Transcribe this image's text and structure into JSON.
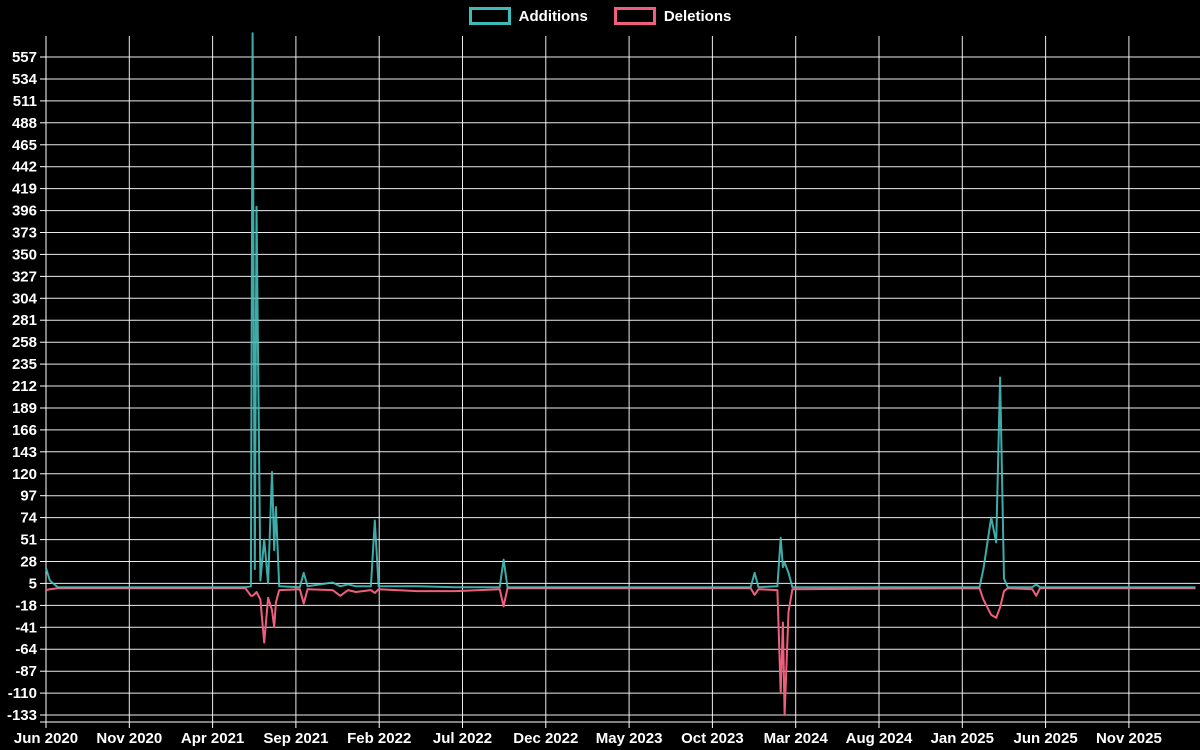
{
  "page": {
    "background": "#000000"
  },
  "legend": {
    "items": [
      {
        "label": "Additions",
        "color": "#3cbcb8"
      },
      {
        "label": "Deletions",
        "color": "#ef5f7d"
      }
    ]
  },
  "chart_data": {
    "type": "line",
    "title": "",
    "legend": [
      "Additions",
      "Deletions"
    ],
    "legend_position": "top-center",
    "grid": true,
    "colors": {
      "additions": "#45c4c0",
      "deletions": "#ef5f7d",
      "grid": "#ffffff",
      "text": "#ffffff",
      "background": "#000000"
    },
    "y_axis": {
      "min": -133,
      "max": 557,
      "tick_step": 23,
      "ticks": [
        557,
        534,
        511,
        488,
        465,
        442,
        419,
        396,
        373,
        350,
        327,
        304,
        281,
        258,
        235,
        212,
        189,
        166,
        143,
        120,
        97,
        74,
        51,
        28,
        5,
        -18,
        -41,
        -64,
        -87,
        -110,
        -133
      ]
    },
    "x_axis": {
      "start": "2020-06",
      "end": "2026-03",
      "months_per_label": 5,
      "labels": [
        "Jun 2020",
        "Nov 2020",
        "Apr 2021",
        "Sep 2021",
        "Feb 2022",
        "Jul 2022",
        "Dec 2022",
        "May 2023",
        "Oct 2023",
        "Mar 2024",
        "Aug 2024",
        "Jan 2025",
        "Jun 2025",
        "Nov 2025"
      ]
    },
    "series": [
      {
        "name": "Additions",
        "key": "additions",
        "color": "#45c4c0"
      },
      {
        "name": "Deletions",
        "key": "deletions",
        "color": "#ef5f7d"
      }
    ],
    "points": [
      {
        "date": "2020-06-01",
        "additions": 21,
        "deletions": -2
      },
      {
        "date": "2020-06-08",
        "additions": 8,
        "deletions": -1
      },
      {
        "date": "2020-06-22",
        "additions": 1,
        "deletions": 0
      },
      {
        "date": "2021-05-30",
        "additions": 1,
        "deletions": 0
      },
      {
        "date": "2021-06-10",
        "additions": 2,
        "deletions": -8
      },
      {
        "date": "2021-06-13",
        "additions": 582,
        "deletions": -8
      },
      {
        "date": "2021-06-17",
        "additions": 20,
        "deletions": -6
      },
      {
        "date": "2021-06-20",
        "additions": 400,
        "deletions": -4
      },
      {
        "date": "2021-06-27",
        "additions": 8,
        "deletions": -12
      },
      {
        "date": "2021-07-04",
        "additions": 51,
        "deletions": -57
      },
      {
        "date": "2021-07-11",
        "additions": 5,
        "deletions": -10
      },
      {
        "date": "2021-07-18",
        "additions": 122,
        "deletions": -23
      },
      {
        "date": "2021-07-22",
        "additions": 40,
        "deletions": -41
      },
      {
        "date": "2021-07-25",
        "additions": 85,
        "deletions": -15
      },
      {
        "date": "2021-08-01",
        "additions": 2,
        "deletions": -2
      },
      {
        "date": "2021-09-08",
        "additions": 1,
        "deletions": -1
      },
      {
        "date": "2021-09-15",
        "additions": 16,
        "deletions": -16
      },
      {
        "date": "2021-09-22",
        "additions": 2,
        "deletions": -1
      },
      {
        "date": "2021-11-07",
        "additions": 6,
        "deletions": -2
      },
      {
        "date": "2021-11-21",
        "additions": 2,
        "deletions": -8
      },
      {
        "date": "2021-12-05",
        "additions": 4,
        "deletions": -2
      },
      {
        "date": "2021-12-19",
        "additions": 2,
        "deletions": -4
      },
      {
        "date": "2022-01-16",
        "additions": 2,
        "deletions": -2
      },
      {
        "date": "2022-01-23",
        "additions": 71,
        "deletions": -5
      },
      {
        "date": "2022-01-30",
        "additions": 2,
        "deletions": -1
      },
      {
        "date": "2022-04-10",
        "additions": 2,
        "deletions": -3
      },
      {
        "date": "2022-06-19",
        "additions": 1,
        "deletions": -3
      },
      {
        "date": "2022-09-08",
        "additions": 1,
        "deletions": -1
      },
      {
        "date": "2022-09-15",
        "additions": 30,
        "deletions": -19
      },
      {
        "date": "2022-09-22",
        "additions": 1,
        "deletions": 0
      },
      {
        "date": "2023-12-10",
        "additions": 1,
        "deletions": 0
      },
      {
        "date": "2023-12-17",
        "additions": 16,
        "deletions": -7
      },
      {
        "date": "2023-12-24",
        "additions": 1,
        "deletions": -1
      },
      {
        "date": "2024-01-28",
        "additions": 2,
        "deletions": -2
      },
      {
        "date": "2024-02-04",
        "additions": 53,
        "deletions": -110
      },
      {
        "date": "2024-02-08",
        "additions": 22,
        "deletions": -36
      },
      {
        "date": "2024-02-11",
        "additions": 27,
        "deletions": -133
      },
      {
        "date": "2024-02-18",
        "additions": 16,
        "deletions": -25
      },
      {
        "date": "2024-02-25",
        "additions": 1,
        "deletions": -1
      },
      {
        "date": "2025-02-02",
        "additions": 1,
        "deletions": 0
      },
      {
        "date": "2025-02-09",
        "additions": 20,
        "deletions": -12
      },
      {
        "date": "2025-02-23",
        "additions": 74,
        "deletions": -28
      },
      {
        "date": "2025-03-02",
        "additions": 48,
        "deletions": -31
      },
      {
        "date": "2025-03-09",
        "additions": 221,
        "deletions": -20
      },
      {
        "date": "2025-03-16",
        "additions": 10,
        "deletions": -3
      },
      {
        "date": "2025-03-23",
        "additions": 1,
        "deletions": 0
      },
      {
        "date": "2025-05-07",
        "additions": 1,
        "deletions": -1
      },
      {
        "date": "2025-05-14",
        "additions": 4,
        "deletions": -8
      },
      {
        "date": "2025-05-21",
        "additions": 1,
        "deletions": 0
      },
      {
        "date": "2026-03-01",
        "additions": 1,
        "deletions": 0
      }
    ]
  }
}
